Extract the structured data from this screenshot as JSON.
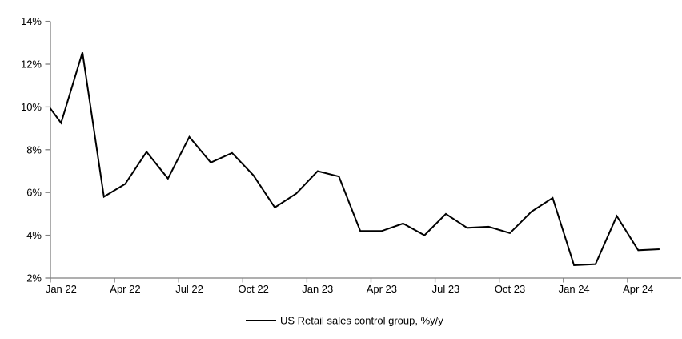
{
  "figure": {
    "background": "#ffffff",
    "axis_color": "#7f7f7f",
    "line_color": "#000000",
    "text_color": "#000000",
    "legend": {
      "label": "US Retail sales control group, %y/y",
      "position": "bottom-center",
      "marker": "solid-black-line"
    }
  },
  "chart_data": {
    "type": "line",
    "title": "",
    "xlabel": "",
    "ylabel": "",
    "grid": false,
    "ylim": [
      2,
      14
    ],
    "y_tick_step": 2,
    "y_tick_labels": [
      "2%",
      "4%",
      "6%",
      "8%",
      "10%",
      "12%",
      "14%"
    ],
    "x_tick_labels": [
      "Jan 22",
      "Apr 22",
      "Jul 22",
      "Oct 22",
      "Jan 23",
      "Apr 23",
      "Jul 23",
      "Oct 23",
      "Jan 24",
      "Apr 24"
    ],
    "x_tick_every_n_months": 3,
    "axis_style": "category-axis, points centered between tick marks, first point (Dec 21) clipped at the y-axis",
    "series": [
      {
        "name": "US Retail sales control group, %y/y",
        "x": [
          "Dec 21",
          "Jan 22",
          "Feb 22",
          "Mar 22",
          "Apr 22",
          "May 22",
          "Jun 22",
          "Jul 22",
          "Aug 22",
          "Sep 22",
          "Oct 22",
          "Nov 22",
          "Dec 22",
          "Jan 23",
          "Feb 23",
          "Mar 23",
          "Apr 23",
          "May 23",
          "Jun 23",
          "Jul 23",
          "Aug 23",
          "Sep 23",
          "Oct 23",
          "Nov 23",
          "Dec 23",
          "Jan 24",
          "Feb 24",
          "Mar 24",
          "Apr 24",
          "May 24"
        ],
        "values": [
          10.6,
          9.25,
          12.55,
          5.8,
          6.4,
          7.9,
          6.65,
          8.6,
          7.4,
          7.85,
          6.8,
          5.3,
          5.95,
          7.0,
          6.75,
          4.2,
          4.2,
          4.55,
          4.0,
          5.0,
          4.35,
          4.4,
          4.1,
          5.1,
          5.75,
          2.6,
          2.65,
          4.9,
          3.3,
          3.35
        ]
      }
    ]
  }
}
